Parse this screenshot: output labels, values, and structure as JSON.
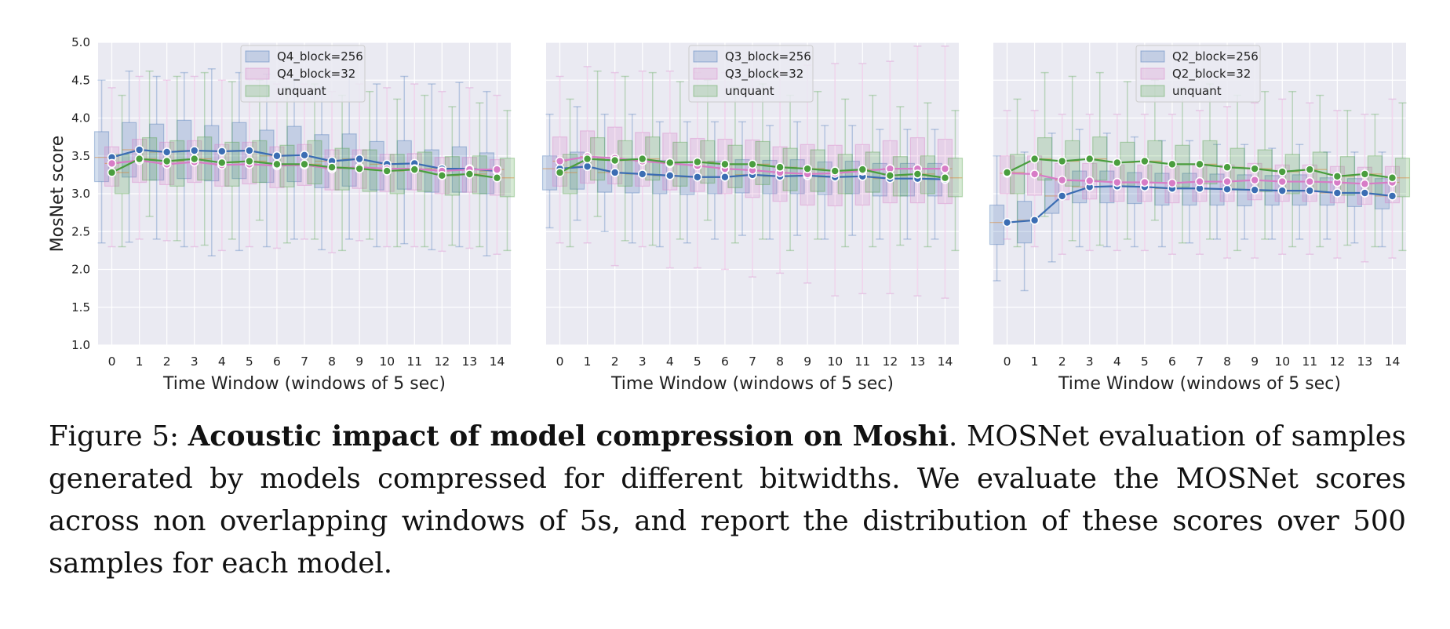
{
  "figure": {
    "ylabel": "MosNet score",
    "xlabel": "Time Window (windows of 5 sec)",
    "x_ticks": [
      "0",
      "1",
      "2",
      "3",
      "4",
      "5",
      "6",
      "7",
      "8",
      "9",
      "10",
      "11",
      "12",
      "13",
      "14"
    ],
    "y_ticks": [
      "1.0",
      "1.5",
      "2.0",
      "2.5",
      "3.0",
      "3.5",
      "4.0",
      "4.5",
      "5.0"
    ],
    "colors": {
      "blue": "#3b6db3",
      "pink": "#d77cc6",
      "green": "#4a9e3e",
      "panel_bg": "#eaeaf2",
      "grid": "#ffffff"
    }
  },
  "caption": {
    "label": "Figure 5:",
    "title": "Acoustic impact of model compression on Moshi",
    "body": ". MOSNet evaluation of samples generated by models compressed for different bitwidths. We evaluate the MOSNet scores across non overlapping windows of 5s, and report the distribution of these scores over 500 samples for each model."
  },
  "chart_data": [
    {
      "type": "box",
      "xlabel": "Time Window (windows of 5 sec)",
      "ylabel": "MosNet score",
      "ylim": [
        1.0,
        5.0
      ],
      "x": [
        0,
        1,
        2,
        3,
        4,
        5,
        6,
        7,
        8,
        9,
        10,
        11,
        12,
        13,
        14
      ],
      "legend_position": "top-center",
      "series": [
        {
          "name": "Q4_block=256",
          "color": "#3b6db3",
          "mean": [
            3.48,
            3.58,
            3.55,
            3.57,
            3.56,
            3.57,
            3.5,
            3.51,
            3.43,
            3.46,
            3.39,
            3.4,
            3.33,
            3.33,
            3.3
          ],
          "q1": [
            3.16,
            3.22,
            3.18,
            3.2,
            3.17,
            3.2,
            3.15,
            3.16,
            3.08,
            3.1,
            3.05,
            3.06,
            3.02,
            3.02,
            3.0
          ],
          "q3": [
            3.82,
            3.94,
            3.92,
            3.97,
            3.9,
            3.94,
            3.84,
            3.89,
            3.78,
            3.79,
            3.69,
            3.7,
            3.58,
            3.62,
            3.54
          ],
          "whisker_low": [
            2.35,
            2.36,
            2.4,
            2.3,
            2.18,
            2.25,
            2.3,
            2.4,
            2.26,
            2.4,
            2.3,
            2.34,
            2.26,
            2.3,
            2.18
          ],
          "whisker_high": [
            4.5,
            4.62,
            4.55,
            4.6,
            4.65,
            4.6,
            4.58,
            4.52,
            4.4,
            4.55,
            4.45,
            4.55,
            4.45,
            4.47,
            4.35
          ]
        },
        {
          "name": "Q4_block=32",
          "color": "#d77cc6",
          "mean": [
            3.4,
            3.44,
            3.39,
            3.42,
            3.38,
            3.39,
            3.37,
            3.38,
            3.33,
            3.35,
            3.33,
            3.33,
            3.3,
            3.32,
            3.32
          ],
          "q1": [
            3.1,
            3.15,
            3.12,
            3.15,
            3.1,
            3.13,
            3.08,
            3.11,
            3.05,
            3.07,
            3.03,
            3.05,
            3.0,
            3.02,
            2.98
          ],
          "q3": [
            3.62,
            3.72,
            3.68,
            3.7,
            3.65,
            3.68,
            3.62,
            3.65,
            3.58,
            3.58,
            3.52,
            3.53,
            3.48,
            3.48,
            3.45
          ],
          "whisker_low": [
            2.3,
            2.4,
            2.38,
            2.3,
            2.25,
            2.3,
            2.28,
            2.4,
            2.22,
            2.38,
            2.3,
            2.3,
            2.24,
            2.28,
            2.2
          ],
          "whisker_high": [
            4.4,
            4.55,
            4.5,
            4.55,
            4.5,
            4.5,
            4.45,
            4.45,
            4.35,
            4.45,
            4.4,
            4.45,
            4.35,
            4.4,
            4.3
          ]
        },
        {
          "name": "unquant",
          "color": "#4a9e3e",
          "mean": [
            3.28,
            3.46,
            3.43,
            3.46,
            3.41,
            3.43,
            3.39,
            3.39,
            3.35,
            3.33,
            3.3,
            3.32,
            3.24,
            3.26,
            3.21
          ],
          "q1": [
            3.0,
            3.18,
            3.1,
            3.18,
            3.1,
            3.15,
            3.09,
            3.13,
            3.05,
            3.03,
            3.0,
            3.03,
            2.98,
            3.0,
            2.96
          ],
          "q3": [
            3.52,
            3.74,
            3.7,
            3.75,
            3.68,
            3.7,
            3.64,
            3.7,
            3.6,
            3.58,
            3.52,
            3.55,
            3.49,
            3.5,
            3.47
          ],
          "whisker_low": [
            2.3,
            2.7,
            2.38,
            2.32,
            2.4,
            2.65,
            2.35,
            2.4,
            2.25,
            2.4,
            2.3,
            2.3,
            2.32,
            2.3,
            2.25
          ],
          "whisker_high": [
            4.3,
            4.62,
            4.55,
            4.6,
            4.48,
            4.5,
            4.4,
            4.45,
            4.3,
            4.35,
            4.25,
            4.3,
            4.15,
            4.2,
            4.1
          ]
        }
      ]
    },
    {
      "type": "box",
      "xlabel": "Time Window (windows of 5 sec)",
      "ylabel": "",
      "ylim": [
        1.0,
        5.0
      ],
      "x": [
        0,
        1,
        2,
        3,
        4,
        5,
        6,
        7,
        8,
        9,
        10,
        11,
        12,
        13,
        14
      ],
      "legend_position": "top-center",
      "series": [
        {
          "name": "Q3_block=256",
          "color": "#3b6db3",
          "mean": [
            3.33,
            3.36,
            3.28,
            3.26,
            3.24,
            3.22,
            3.22,
            3.25,
            3.23,
            3.24,
            3.22,
            3.23,
            3.2,
            3.2,
            3.19
          ],
          "q1": [
            3.05,
            3.06,
            3.02,
            3.01,
            3.0,
            2.99,
            3.0,
            3.01,
            3.0,
            3.0,
            2.99,
            3.0,
            2.97,
            2.97,
            2.97
          ],
          "q3": [
            3.5,
            3.55,
            3.48,
            3.46,
            3.44,
            3.42,
            3.43,
            3.45,
            3.44,
            3.45,
            3.42,
            3.43,
            3.4,
            3.4,
            3.4
          ],
          "whisker_low": [
            2.55,
            2.65,
            2.5,
            2.35,
            2.3,
            2.35,
            2.4,
            2.45,
            2.4,
            2.45,
            2.4,
            2.45,
            2.4,
            2.4,
            2.4
          ],
          "whisker_high": [
            4.05,
            4.15,
            4.05,
            4.05,
            3.95,
            3.95,
            3.95,
            3.95,
            3.9,
            3.95,
            3.9,
            3.9,
            3.85,
            3.85,
            3.85
          ]
        },
        {
          "name": "Q3_block=32",
          "color": "#d77cc6",
          "mean": [
            3.43,
            3.49,
            3.47,
            3.43,
            3.4,
            3.37,
            3.33,
            3.31,
            3.28,
            3.26,
            3.27,
            3.3,
            3.33,
            3.33,
            3.33
          ],
          "q1": [
            3.1,
            3.14,
            3.13,
            3.1,
            3.05,
            3.03,
            3.0,
            2.95,
            2.9,
            2.85,
            2.84,
            2.85,
            2.88,
            2.88,
            2.87
          ],
          "q3": [
            3.75,
            3.83,
            3.88,
            3.81,
            3.8,
            3.73,
            3.72,
            3.71,
            3.62,
            3.65,
            3.64,
            3.65,
            3.7,
            3.74,
            3.72
          ],
          "whisker_low": [
            2.35,
            2.35,
            2.05,
            2.3,
            2.02,
            2.02,
            2.0,
            1.9,
            1.95,
            1.82,
            1.65,
            1.68,
            1.68,
            1.65,
            1.62
          ],
          "whisker_high": [
            4.55,
            4.68,
            4.6,
            4.62,
            4.62,
            4.6,
            4.6,
            4.62,
            4.62,
            4.7,
            4.72,
            4.72,
            4.75,
            4.95,
            4.95
          ]
        },
        {
          "name": "unquant",
          "color": "#4a9e3e",
          "mean": [
            3.28,
            3.46,
            3.44,
            3.46,
            3.41,
            3.42,
            3.39,
            3.39,
            3.35,
            3.33,
            3.3,
            3.32,
            3.24,
            3.26,
            3.21
          ],
          "q1": [
            3.0,
            3.18,
            3.1,
            3.18,
            3.1,
            3.14,
            3.08,
            3.12,
            3.04,
            3.03,
            3.0,
            3.02,
            2.97,
            3.0,
            2.96
          ],
          "q3": [
            3.52,
            3.74,
            3.7,
            3.75,
            3.68,
            3.7,
            3.64,
            3.69,
            3.6,
            3.58,
            3.52,
            3.55,
            3.49,
            3.5,
            3.47
          ],
          "whisker_low": [
            2.3,
            2.7,
            2.38,
            2.32,
            2.4,
            2.65,
            2.35,
            2.4,
            2.25,
            2.4,
            2.3,
            2.3,
            2.32,
            2.3,
            2.25
          ],
          "whisker_high": [
            4.25,
            4.62,
            4.55,
            4.6,
            4.48,
            4.5,
            4.4,
            4.45,
            4.3,
            4.35,
            4.25,
            4.3,
            4.15,
            4.2,
            4.1
          ]
        }
      ]
    },
    {
      "type": "box",
      "xlabel": "Time Window (windows of 5 sec)",
      "ylabel": "",
      "ylim": [
        1.0,
        5.0
      ],
      "x": [
        0,
        1,
        2,
        3,
        4,
        5,
        6,
        7,
        8,
        9,
        10,
        11,
        12,
        13,
        14
      ],
      "legend_position": "top-center",
      "series": [
        {
          "name": "Q2_block=256",
          "color": "#3b6db3",
          "mean": [
            2.62,
            2.65,
            2.97,
            3.09,
            3.1,
            3.09,
            3.07,
            3.07,
            3.06,
            3.05,
            3.04,
            3.04,
            3.01,
            3.01,
            2.97
          ],
          "q1": [
            2.33,
            2.35,
            2.74,
            2.88,
            2.88,
            2.87,
            2.85,
            2.85,
            2.85,
            2.84,
            2.85,
            2.85,
            2.85,
            2.83,
            2.8
          ],
          "q3": [
            2.85,
            2.9,
            3.2,
            3.3,
            3.3,
            3.28,
            3.27,
            3.27,
            3.26,
            3.25,
            3.24,
            3.25,
            3.21,
            3.2,
            3.2
          ],
          "whisker_low": [
            1.85,
            1.72,
            2.1,
            2.3,
            2.3,
            2.3,
            2.3,
            2.35,
            2.4,
            2.4,
            2.4,
            2.4,
            2.4,
            2.35,
            2.3
          ],
          "whisker_high": [
            3.5,
            3.55,
            3.8,
            3.85,
            3.8,
            3.75,
            3.7,
            3.7,
            3.65,
            3.65,
            3.6,
            3.65,
            3.55,
            3.55,
            3.55
          ]
        },
        {
          "name": "Q2_block=32",
          "color": "#d77cc6",
          "mean": [
            3.27,
            3.26,
            3.18,
            3.17,
            3.15,
            3.15,
            3.14,
            3.16,
            3.16,
            3.18,
            3.16,
            3.16,
            3.15,
            3.13,
            3.15
          ],
          "q1": [
            3.0,
            2.98,
            2.92,
            2.93,
            2.9,
            2.9,
            2.88,
            2.9,
            2.9,
            2.92,
            2.9,
            2.9,
            2.88,
            2.86,
            2.88
          ],
          "q3": [
            3.5,
            3.5,
            3.4,
            3.4,
            3.38,
            3.38,
            3.36,
            3.38,
            3.38,
            3.4,
            3.38,
            3.38,
            3.36,
            3.35,
            3.36
          ],
          "whisker_low": [
            2.4,
            2.3,
            2.2,
            2.25,
            2.25,
            2.25,
            2.2,
            2.2,
            2.15,
            2.15,
            2.2,
            2.2,
            2.15,
            2.1,
            2.15
          ],
          "whisker_high": [
            4.1,
            4.1,
            4.05,
            4.05,
            4.05,
            4.05,
            4.05,
            4.1,
            4.15,
            4.2,
            4.25,
            4.2,
            4.1,
            4.05,
            4.25
          ]
        },
        {
          "name": "unquant",
          "color": "#4a9e3e",
          "mean": [
            3.28,
            3.46,
            3.43,
            3.46,
            3.41,
            3.43,
            3.39,
            3.39,
            3.35,
            3.33,
            3.29,
            3.32,
            3.23,
            3.26,
            3.21
          ],
          "q1": [
            3.0,
            3.18,
            3.1,
            3.18,
            3.1,
            3.15,
            3.09,
            3.13,
            3.05,
            3.03,
            3.0,
            3.03,
            2.98,
            3.0,
            2.96
          ],
          "q3": [
            3.52,
            3.74,
            3.7,
            3.75,
            3.68,
            3.7,
            3.64,
            3.7,
            3.6,
            3.58,
            3.52,
            3.55,
            3.49,
            3.5,
            3.47
          ],
          "whisker_low": [
            2.3,
            2.7,
            2.38,
            2.32,
            2.4,
            2.65,
            2.35,
            2.4,
            2.25,
            2.4,
            2.3,
            2.3,
            2.32,
            2.3,
            2.25
          ],
          "whisker_high": [
            4.25,
            4.6,
            4.55,
            4.6,
            4.48,
            4.5,
            4.4,
            4.45,
            4.3,
            4.35,
            4.35,
            4.3,
            4.1,
            4.05,
            4.2
          ]
        }
      ]
    }
  ]
}
